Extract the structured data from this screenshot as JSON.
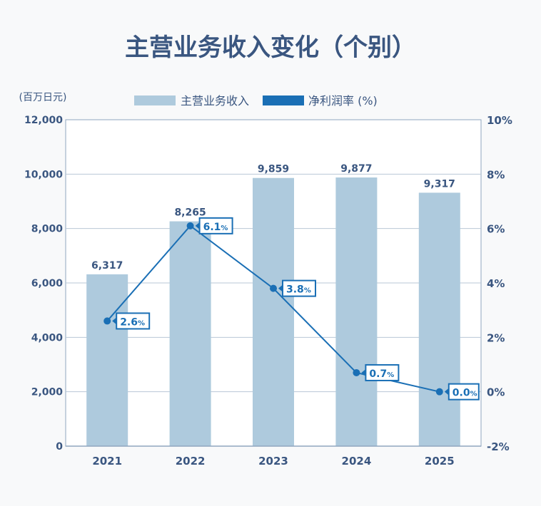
{
  "chart_data": {
    "type": "bar+line",
    "title": "主营业务收入变化（个别）",
    "y_left_unit": "(百万日元)",
    "categories": [
      "2021",
      "2022",
      "2023",
      "2024",
      "2025"
    ],
    "series": [
      {
        "name": "主营业务收入",
        "type": "bar",
        "axis": "left",
        "values": [
          6317,
          8265,
          9859,
          9877,
          9317
        ],
        "labels": [
          "6,317",
          "8,265",
          "9,859",
          "9,877",
          "9,317"
        ],
        "color": "#aecadd"
      },
      {
        "name": "净利润率 (%)",
        "type": "line",
        "axis": "right",
        "values": [
          2.6,
          6.1,
          3.8,
          0.7,
          0.0
        ],
        "labels": [
          "2.6",
          "6.1",
          "3.8",
          "0.7",
          "0.0"
        ],
        "label_suffix": "%",
        "color": "#1a6fb5"
      }
    ],
    "y_left": {
      "range": [
        0,
        12000
      ],
      "ticks": [
        0,
        2000,
        4000,
        6000,
        8000,
        10000,
        12000
      ],
      "tick_labels": [
        "0",
        "2,000",
        "4,000",
        "6,000",
        "8,000",
        "10,000",
        "12,000"
      ]
    },
    "y_right": {
      "range": [
        -2,
        10
      ],
      "ticks": [
        -2,
        0,
        2,
        4,
        6,
        8,
        10
      ],
      "tick_labels": [
        "-2%",
        "0%",
        "2%",
        "4%",
        "6%",
        "8%",
        "10%"
      ]
    },
    "grid": true,
    "legend_placement": "top-center",
    "colors": {
      "text": "#3a5680",
      "axis": "#8fa6bf",
      "grid": "#b9c7d6"
    }
  }
}
